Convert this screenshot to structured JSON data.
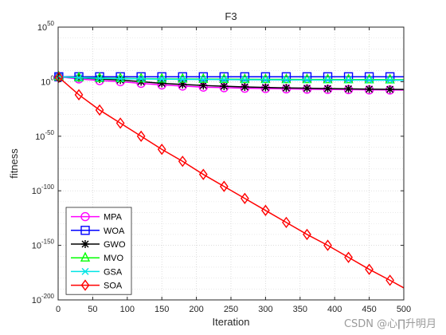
{
  "chart_data": {
    "type": "line",
    "title": "F3",
    "xlabel": "Iteration",
    "ylabel": "fitness",
    "y_scale": "log10",
    "xlim": [
      0,
      500
    ],
    "ylim_exponent": [
      -200,
      50
    ],
    "x_ticks": [
      0,
      50,
      100,
      150,
      200,
      250,
      300,
      350,
      400,
      450,
      500
    ],
    "y_tick_exponents": [
      50,
      0,
      -50,
      -100,
      -150,
      -200
    ],
    "y_tick_labels": [
      {
        "base": "10",
        "exp": "50"
      },
      {
        "base": "10",
        "exp": "0"
      },
      {
        "base": "10",
        "exp": "-50"
      },
      {
        "base": "10",
        "exp": "-100"
      },
      {
        "base": "10",
        "exp": "-150"
      },
      {
        "base": "10",
        "exp": "-200"
      }
    ],
    "grid": true,
    "legend_position": "bottom-left",
    "marker_x": [
      1,
      30,
      60,
      90,
      120,
      150,
      180,
      210,
      240,
      270,
      300,
      330,
      360,
      390,
      420,
      450,
      480
    ],
    "series": [
      {
        "name": "MPA",
        "color": "#ff00ff",
        "marker": "circle",
        "x": [
          0,
          30,
          60,
          90,
          120,
          150,
          180,
          210,
          240,
          270,
          300,
          330,
          360,
          390,
          420,
          450,
          480,
          500
        ],
        "log10_y": [
          4.5,
          2.5,
          1,
          0,
          -1.5,
          -3,
          -4,
          -5,
          -5.5,
          -6,
          -6.3,
          -6.6,
          -6.9,
          -7.1,
          -7.3,
          -7.5,
          -7.6,
          -7.7
        ]
      },
      {
        "name": "WOA",
        "color": "#0000ff",
        "marker": "square",
        "x": [
          0,
          30,
          60,
          90,
          120,
          150,
          180,
          210,
          240,
          270,
          300,
          330,
          360,
          390,
          420,
          450,
          480,
          500
        ],
        "log10_y": [
          4.5,
          4.5,
          4.5,
          4.5,
          4.5,
          4.5,
          4.5,
          4.5,
          4.5,
          4.5,
          4.5,
          4.5,
          4.5,
          4.5,
          4.5,
          4.5,
          4.5,
          4.5
        ]
      },
      {
        "name": "GWO",
        "color": "#000000",
        "marker": "star",
        "x": [
          0,
          30,
          60,
          90,
          120,
          150,
          180,
          210,
          240,
          270,
          300,
          330,
          360,
          390,
          420,
          450,
          480,
          500
        ],
        "log10_y": [
          4.5,
          3.5,
          2.5,
          1.5,
          0,
          -1.5,
          -2.5,
          -3.5,
          -4.2,
          -4.8,
          -5.3,
          -5.7,
          -6,
          -6.3,
          -6.6,
          -6.8,
          -7,
          -7.1
        ]
      },
      {
        "name": "MVO",
        "color": "#00ff00",
        "marker": "triangle",
        "x": [
          0,
          30,
          60,
          90,
          120,
          150,
          180,
          210,
          240,
          270,
          300,
          330,
          360,
          390,
          420,
          450,
          480,
          500
        ],
        "log10_y": [
          4.5,
          3.8,
          3.3,
          3,
          2.8,
          2.6,
          2.5,
          2.4,
          2.3,
          2.2,
          2.15,
          2.1,
          2.05,
          2,
          1.95,
          1.9,
          1.85,
          1.8
        ]
      },
      {
        "name": "GSA",
        "color": "#00e5e5",
        "marker": "x",
        "x": [
          0,
          30,
          60,
          90,
          120,
          150,
          180,
          210,
          240,
          270,
          300,
          330,
          360,
          390,
          420,
          450,
          480,
          500
        ],
        "log10_y": [
          4.5,
          3.6,
          3.1,
          2.8,
          2.5,
          2.3,
          2.1,
          2,
          1.9,
          1.8,
          1.7,
          1.6,
          1.55,
          1.5,
          1.45,
          1.4,
          1.35,
          1.3
        ]
      },
      {
        "name": "SOA",
        "color": "#ff0000",
        "marker": "diamond",
        "x": [
          0,
          30,
          60,
          90,
          120,
          150,
          180,
          210,
          240,
          270,
          300,
          330,
          360,
          390,
          420,
          450,
          480,
          500
        ],
        "log10_y": [
          4.5,
          -12,
          -26,
          -38,
          -50,
          -62,
          -73,
          -85,
          -96,
          -107,
          -118,
          -129,
          -140,
          -150,
          -161,
          -172,
          -182,
          -189
        ]
      }
    ]
  },
  "watermark": "CSDN @心∏升明月"
}
